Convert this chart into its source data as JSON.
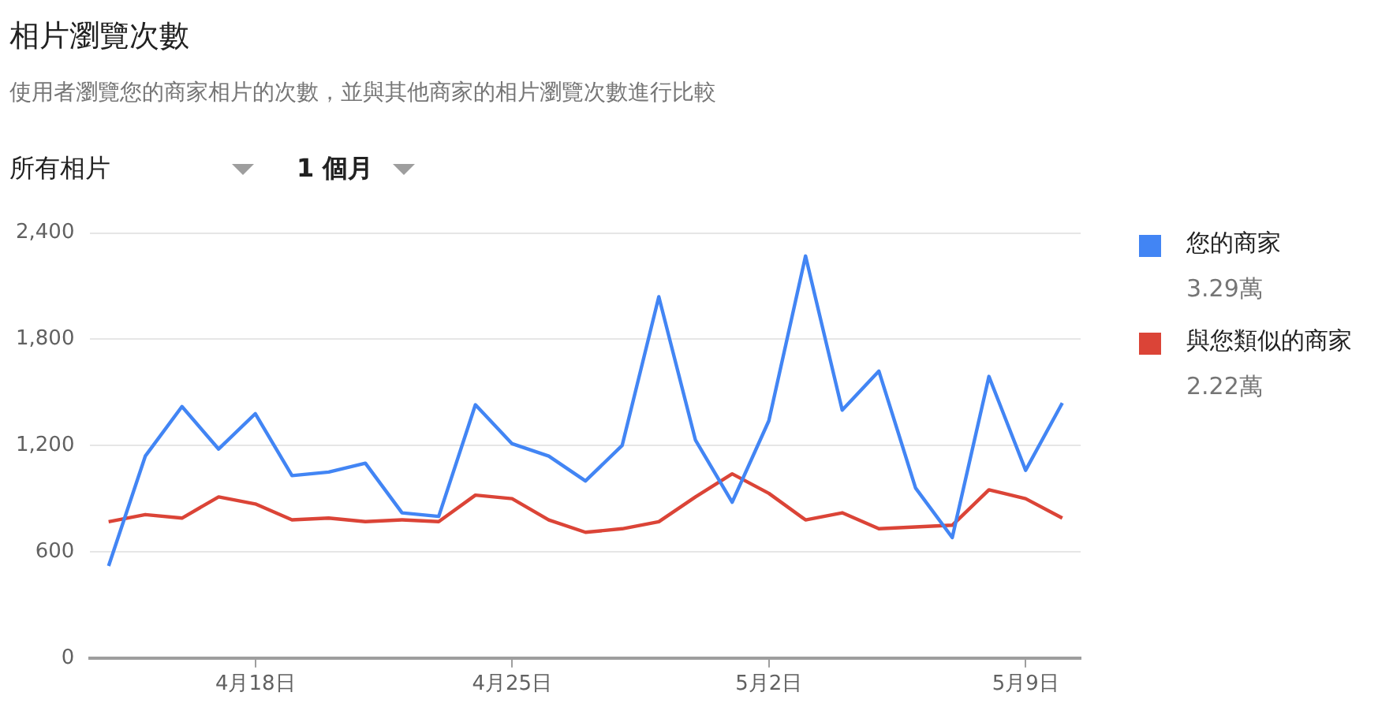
{
  "chart_data": {
    "type": "line",
    "title": "相片瀏覽次數",
    "subtitle": "使用者瀏覽您的商家相片的次數，並與其他商家的相片瀏覽次數進行比較",
    "categories": [
      null,
      null,
      null,
      null,
      "4月18日",
      null,
      null,
      null,
      null,
      null,
      null,
      "4月25日",
      null,
      null,
      null,
      null,
      null,
      null,
      "5月2日",
      null,
      null,
      null,
      null,
      null,
      null,
      "5月9日",
      null
    ],
    "series": [
      {
        "name": "您的商家",
        "color": "#4285f4",
        "values": [
          520,
          1140,
          1420,
          1180,
          1380,
          1030,
          1050,
          1100,
          820,
          800,
          1430,
          1210,
          1140,
          1000,
          1200,
          2040,
          1230,
          880,
          1340,
          2270,
          1400,
          1620,
          960,
          680,
          1590,
          1060,
          1440
        ]
      },
      {
        "name": "與您類似的商家",
        "color": "#db4437",
        "values": [
          770,
          810,
          790,
          910,
          870,
          780,
          790,
          770,
          780,
          770,
          920,
          900,
          780,
          710,
          730,
          770,
          910,
          1040,
          930,
          780,
          820,
          730,
          740,
          750,
          950,
          900,
          790
        ]
      }
    ],
    "ylim": [
      0,
      2400
    ],
    "yticks": [
      0,
      {
        "value": 600,
        "label": "600"
      },
      {
        "value": 1200,
        "label": "1,200"
      },
      {
        "value": 1800,
        "label": "1,800"
      },
      {
        "value": 2400,
        "label": "2,400"
      }
    ],
    "grid": "y",
    "legend": "right",
    "marker": "none",
    "line_style": "solid",
    "annotations": [
      "3.29萬",
      "2.22萬",
      "所有相片",
      "1 個月"
    ]
  }
}
